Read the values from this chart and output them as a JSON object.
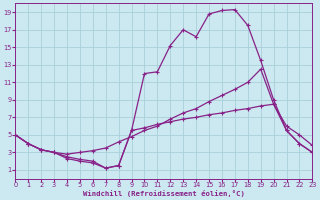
{
  "xlabel": "Windchill (Refroidissement éolien,°C)",
  "bg_color": "#cce8f0",
  "grid_color": "#aacfda",
  "line_color": "#882288",
  "xlim": [
    0,
    23
  ],
  "ylim": [
    0,
    20
  ],
  "xticks": [
    0,
    1,
    2,
    3,
    4,
    5,
    6,
    7,
    8,
    9,
    10,
    11,
    12,
    13,
    14,
    15,
    16,
    17,
    18,
    19,
    20,
    21,
    22,
    23
  ],
  "yticks": [
    1,
    3,
    5,
    7,
    9,
    11,
    13,
    15,
    17,
    19
  ],
  "curve1_x": [
    0,
    1,
    2,
    3,
    4,
    5,
    6,
    7,
    8,
    9,
    10,
    11,
    12,
    13,
    14,
    15,
    16,
    17,
    18,
    19,
    20,
    21,
    22,
    23
  ],
  "curve1_y": [
    5.0,
    4.0,
    3.3,
    3.0,
    2.5,
    2.2,
    2.0,
    1.2,
    1.5,
    5.5,
    12.0,
    12.2,
    15.2,
    17.0,
    16.2,
    18.8,
    19.2,
    19.3,
    17.5,
    13.5,
    9.0,
    5.5,
    4.0,
    3.0
  ],
  "curve2_x": [
    0,
    1,
    2,
    3,
    4,
    5,
    6,
    7,
    8,
    9,
    10,
    11,
    12,
    13,
    14,
    15,
    16,
    17,
    18,
    19,
    20,
    21,
    22,
    23
  ],
  "curve2_y": [
    5.0,
    4.0,
    3.3,
    3.0,
    2.8,
    3.0,
    3.2,
    3.5,
    4.2,
    4.8,
    5.5,
    6.0,
    6.8,
    7.5,
    8.0,
    8.8,
    9.5,
    10.2,
    11.0,
    12.5,
    8.5,
    6.0,
    5.0,
    3.8
  ],
  "curve3_x": [
    0,
    1,
    2,
    3,
    4,
    5,
    6,
    7,
    8,
    9,
    10,
    11,
    12,
    13,
    14,
    15,
    16,
    17,
    18,
    19,
    20,
    21,
    22,
    23
  ],
  "curve3_y": [
    5.0,
    4.0,
    3.3,
    3.0,
    2.3,
    2.0,
    1.8,
    1.2,
    1.5,
    5.5,
    5.8,
    6.2,
    6.5,
    6.8,
    7.0,
    7.3,
    7.5,
    7.8,
    8.0,
    8.3,
    8.5,
    5.5,
    4.0,
    3.0
  ]
}
